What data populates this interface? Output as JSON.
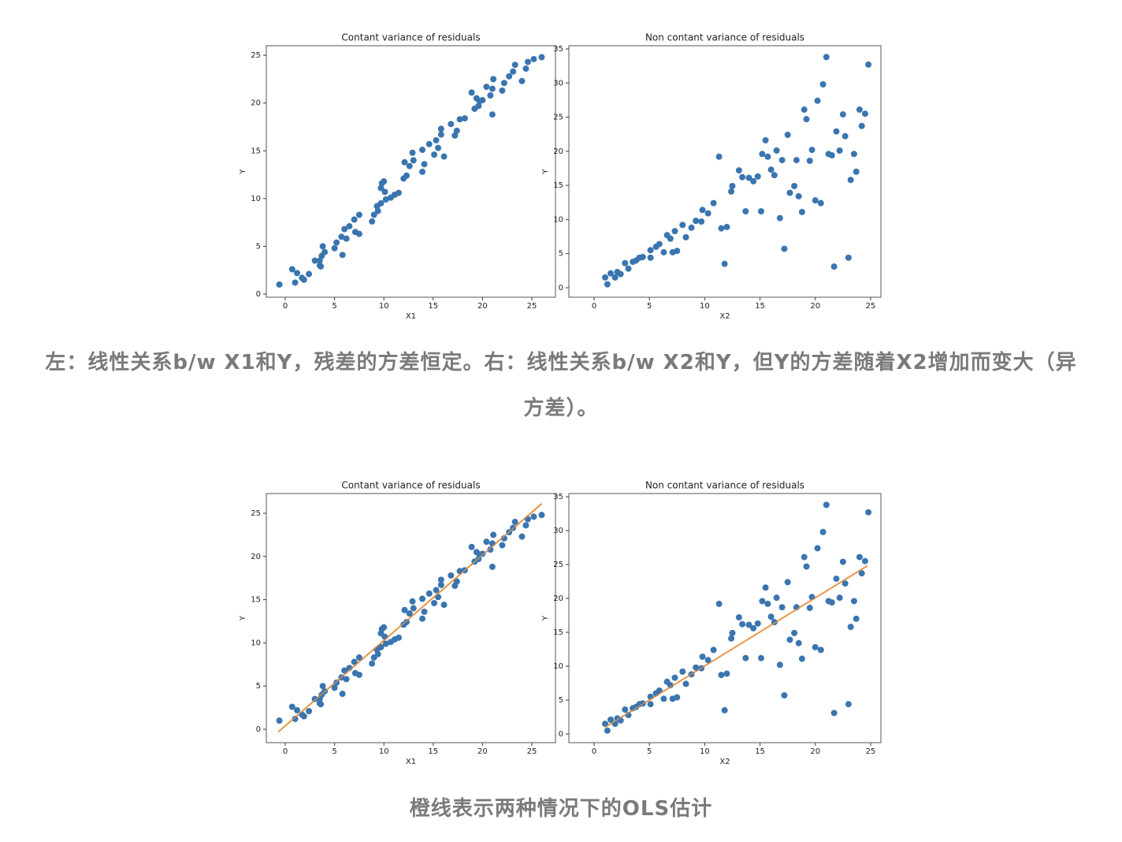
{
  "chart_data": [
    {
      "type": "scatter",
      "title": "Contant variance of residuals",
      "xlabel": "X1",
      "ylabel": "Y",
      "color": "#3a75af",
      "x": [
        -0.6,
        0.7,
        1.2,
        1.0,
        1.7,
        1.9,
        2.4,
        3.0,
        3.5,
        3.6,
        3.7,
        3.8,
        4.0,
        3.5,
        5.0,
        5.2,
        5.7,
        5.8,
        6.0,
        6.2,
        6.5,
        7.0,
        7.1,
        7.5,
        7.5,
        8.8,
        9.0,
        9.3,
        9.4,
        9.7,
        9.7,
        9.8,
        10.0,
        10.1,
        10.2,
        10.7,
        11.1,
        11.5,
        12.0,
        12.1,
        12.3,
        12.6,
        12.9,
        13.0,
        13.9,
        14.1,
        13.9,
        14.6,
        15.1,
        15.3,
        15.5,
        15.8,
        15.8,
        16.1,
        16.8,
        17.2,
        17.4,
        17.7,
        18.2,
        18.9,
        19.2,
        19.6,
        19.4,
        19.7,
        20.0,
        20.4,
        20.8,
        21.0,
        21.1,
        21.0,
        22.0,
        22.2,
        22.7,
        23.1,
        23.3,
        24.0,
        24.4,
        24.6,
        25.2,
        26.0
      ],
      "y": [
        1.0,
        2.6,
        2.2,
        1.2,
        1.7,
        1.5,
        2.1,
        3.5,
        3.5,
        2.9,
        4.0,
        5.0,
        4.4,
        3.0,
        4.8,
        5.4,
        6.0,
        4.1,
        6.8,
        5.8,
        7.1,
        7.8,
        6.5,
        6.3,
        8.3,
        7.6,
        8.3,
        9.2,
        8.7,
        9.5,
        11.1,
        11.6,
        11.8,
        10.7,
        9.9,
        10.1,
        10.4,
        10.6,
        12.1,
        13.8,
        12.4,
        13.4,
        14.8,
        14.0,
        12.8,
        13.6,
        15.1,
        15.7,
        14.6,
        16.1,
        15.3,
        17.3,
        16.7,
        14.4,
        17.8,
        16.6,
        17.1,
        18.3,
        18.4,
        21.1,
        19.4,
        19.7,
        20.5,
        20.2,
        20.3,
        21.7,
        20.8,
        18.8,
        22.5,
        21.5,
        21.3,
        22.1,
        22.8,
        23.3,
        24.0,
        22.3,
        23.6,
        24.3,
        24.6,
        24.8
      ],
      "xlim": [
        -1.92,
        27.4
      ],
      "ylim": [
        -0.33,
        26.0
      ],
      "xticks": [
        0,
        5,
        10,
        15,
        20,
        25
      ],
      "yticks": [
        0,
        5,
        10,
        15,
        20,
        25
      ]
    },
    {
      "type": "scatter",
      "title": "Non contant variance of residuals",
      "xlabel": "X2",
      "ylabel": "Y",
      "color": "#3a75af",
      "x": [
        1.0,
        1.2,
        1.5,
        1.9,
        2.1,
        2.4,
        2.8,
        3.1,
        3.5,
        3.8,
        4.1,
        4.4,
        5.1,
        5.1,
        5.6,
        5.9,
        6.3,
        6.6,
        6.9,
        7.3,
        7.1,
        7.5,
        8.0,
        8.3,
        8.8,
        9.2,
        9.7,
        9.8,
        10.3,
        10.8,
        11.3,
        11.5,
        12.0,
        11.8,
        12.4,
        12.5,
        13.1,
        13.4,
        13.7,
        14.0,
        14.4,
        14.8,
        15.1,
        15.2,
        15.5,
        15.7,
        16.0,
        16.3,
        16.5,
        16.8,
        17.0,
        17.2,
        17.5,
        17.7,
        18.1,
        18.3,
        18.5,
        18.8,
        19.0,
        19.2,
        19.5,
        19.7,
        20.0,
        20.2,
        20.5,
        20.7,
        21.0,
        21.2,
        21.5,
        21.7,
        21.9,
        22.2,
        22.5,
        22.7,
        23.0,
        23.2,
        23.5,
        23.7,
        24.0,
        24.2,
        24.5,
        24.8
      ],
      "y": [
        1.5,
        0.5,
        2.1,
        1.5,
        2.3,
        2.0,
        3.6,
        2.8,
        3.8,
        4.0,
        4.4,
        4.5,
        5.5,
        4.4,
        6.0,
        6.4,
        5.2,
        7.7,
        7.2,
        8.3,
        5.2,
        5.4,
        9.2,
        7.4,
        8.8,
        9.8,
        9.7,
        11.4,
        10.9,
        12.4,
        19.2,
        8.7,
        8.9,
        3.5,
        14.1,
        14.9,
        17.2,
        16.2,
        11.2,
        16.1,
        15.6,
        16.3,
        11.2,
        19.6,
        21.6,
        19.2,
        17.3,
        16.5,
        20.1,
        10.2,
        18.7,
        5.7,
        22.4,
        13.9,
        14.9,
        18.7,
        13.4,
        11.1,
        26.1,
        24.7,
        18.6,
        20.2,
        12.8,
        27.4,
        12.4,
        29.8,
        33.8,
        19.6,
        19.4,
        3.1,
        22.9,
        20.1,
        25.4,
        22.2,
        4.4,
        15.8,
        19.6,
        17.0,
        26.1,
        23.7,
        25.5,
        32.7
      ],
      "xlim": [
        -2.28,
        25.93
      ],
      "ylim": [
        -1.39,
        35.46
      ],
      "xticks": [
        0,
        5,
        10,
        15,
        20,
        25
      ],
      "yticks": [
        0,
        5,
        10,
        15,
        20,
        25,
        30,
        35
      ]
    },
    {
      "type": "scatter",
      "title": "Contant variance of residuals",
      "xlabel": "X1",
      "ylabel": "Y",
      "color": "#3a75af",
      "x": [
        -0.6,
        0.7,
        1.2,
        1.0,
        1.7,
        1.9,
        2.4,
        3.0,
        3.5,
        3.6,
        3.7,
        3.8,
        4.0,
        3.5,
        5.0,
        5.2,
        5.7,
        5.8,
        6.0,
        6.2,
        6.5,
        7.0,
        7.1,
        7.5,
        7.5,
        8.8,
        9.0,
        9.3,
        9.4,
        9.7,
        9.7,
        9.8,
        10.0,
        10.1,
        10.2,
        10.7,
        11.1,
        11.5,
        12.0,
        12.1,
        12.3,
        12.6,
        12.9,
        13.0,
        13.9,
        14.1,
        13.9,
        14.6,
        15.1,
        15.3,
        15.5,
        15.8,
        15.8,
        16.1,
        16.8,
        17.2,
        17.4,
        17.7,
        18.2,
        18.9,
        19.2,
        19.6,
        19.4,
        19.7,
        20.0,
        20.4,
        20.8,
        21.0,
        21.1,
        21.0,
        22.0,
        22.2,
        22.7,
        23.1,
        23.3,
        24.0,
        24.4,
        24.6,
        25.2,
        26.0
      ],
      "y": [
        1.0,
        2.6,
        2.2,
        1.2,
        1.7,
        1.5,
        2.1,
        3.5,
        3.5,
        2.9,
        4.0,
        5.0,
        4.4,
        3.0,
        4.8,
        5.4,
        6.0,
        4.1,
        6.8,
        5.8,
        7.1,
        7.8,
        6.5,
        6.3,
        8.3,
        7.6,
        8.3,
        9.2,
        8.7,
        9.5,
        11.1,
        11.6,
        11.8,
        10.7,
        9.9,
        10.1,
        10.4,
        10.6,
        12.1,
        13.8,
        12.4,
        13.4,
        14.8,
        14.0,
        12.8,
        13.6,
        15.1,
        15.7,
        14.6,
        16.1,
        15.3,
        17.3,
        16.7,
        14.4,
        17.8,
        16.6,
        17.1,
        18.3,
        18.4,
        21.1,
        19.4,
        19.7,
        20.5,
        20.2,
        20.3,
        21.7,
        20.8,
        18.8,
        22.5,
        21.5,
        21.3,
        22.1,
        22.8,
        23.3,
        24.0,
        22.3,
        23.6,
        24.3,
        24.6,
        24.8
      ],
      "fit": {
        "x": [
          -0.7,
          26.0
        ],
        "y": [
          -0.3,
          26.1
        ],
        "color": "#e8954a"
      },
      "xlim": [
        -1.92,
        27.4
      ],
      "ylim": [
        -1.55,
        27.28
      ],
      "xticks": [
        0,
        5,
        10,
        15,
        20,
        25
      ],
      "yticks": [
        0,
        5,
        10,
        15,
        20,
        25
      ]
    },
    {
      "type": "scatter",
      "title": "Non contant variance of residuals",
      "xlabel": "X2",
      "ylabel": "Y",
      "color": "#3a75af",
      "x": [
        1.0,
        1.2,
        1.5,
        1.9,
        2.1,
        2.4,
        2.8,
        3.1,
        3.5,
        3.8,
        4.1,
        4.4,
        5.1,
        5.1,
        5.6,
        5.9,
        6.3,
        6.6,
        6.9,
        7.3,
        7.1,
        7.5,
        8.0,
        8.3,
        8.8,
        9.2,
        9.7,
        9.8,
        10.3,
        10.8,
        11.3,
        11.5,
        12.0,
        11.8,
        12.4,
        12.5,
        13.1,
        13.4,
        13.7,
        14.0,
        14.4,
        14.8,
        15.1,
        15.2,
        15.5,
        15.7,
        16.0,
        16.3,
        16.5,
        16.8,
        17.0,
        17.2,
        17.5,
        17.7,
        18.1,
        18.3,
        18.5,
        18.8,
        19.0,
        19.2,
        19.5,
        19.7,
        20.0,
        20.2,
        20.5,
        20.7,
        21.0,
        21.2,
        21.5,
        21.7,
        21.9,
        22.2,
        22.5,
        22.7,
        23.0,
        23.2,
        23.5,
        23.7,
        24.0,
        24.2,
        24.5,
        24.8
      ],
      "y": [
        1.5,
        0.5,
        2.1,
        1.5,
        2.3,
        2.0,
        3.6,
        2.8,
        3.8,
        4.0,
        4.4,
        4.5,
        5.5,
        4.4,
        6.0,
        6.4,
        5.2,
        7.7,
        7.2,
        8.3,
        5.2,
        5.4,
        9.2,
        7.4,
        8.8,
        9.8,
        9.7,
        11.4,
        10.9,
        12.4,
        19.2,
        8.7,
        8.9,
        3.5,
        14.1,
        14.9,
        17.2,
        16.2,
        11.2,
        16.1,
        15.6,
        16.3,
        11.2,
        19.6,
        21.6,
        19.2,
        17.3,
        16.5,
        20.1,
        10.2,
        18.7,
        5.7,
        22.4,
        13.9,
        14.9,
        18.7,
        13.4,
        11.1,
        26.1,
        24.7,
        18.6,
        20.2,
        12.8,
        27.4,
        12.4,
        29.8,
        33.8,
        19.6,
        19.4,
        3.1,
        22.9,
        20.1,
        25.4,
        22.2,
        4.4,
        15.8,
        19.6,
        17.0,
        26.1,
        23.7,
        25.5,
        32.7
      ],
      "fit": {
        "x": [
          1.0,
          24.7
        ],
        "y": [
          1.0,
          24.8
        ],
        "color": "#e8954a"
      },
      "xlim": [
        -2.28,
        25.93
      ],
      "ylim": [
        -1.28,
        35.47
      ],
      "xticks": [
        0,
        5,
        10,
        15,
        20,
        25
      ],
      "yticks": [
        0,
        5,
        10,
        15,
        20,
        25,
        30,
        35
      ]
    }
  ],
  "captions": [
    "左：线性关系b/w X1和Y，残差的方差恒定。右：线性关系b/w X2和Y，但Y的方差随着X2增加而变大（异方差）。",
    "橙线表示两种情况下的OLS估计"
  ]
}
